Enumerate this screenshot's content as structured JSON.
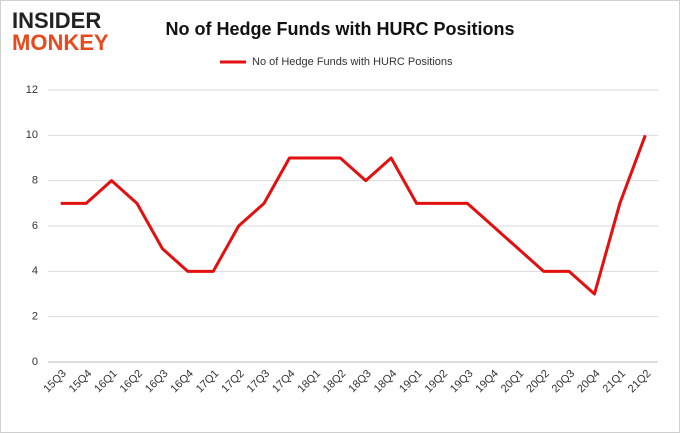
{
  "brand": {
    "line1": "INSIDER",
    "line2": "MONKEY"
  },
  "chart_data": {
    "type": "line",
    "title": "No of Hedge Funds with HURC Positions",
    "categories": [
      "15Q3",
      "15Q4",
      "16Q1",
      "16Q2",
      "16Q3",
      "16Q4",
      "17Q1",
      "17Q2",
      "17Q3",
      "17Q4",
      "18Q1",
      "18Q2",
      "18Q3",
      "18Q4",
      "19Q1",
      "19Q2",
      "19Q3",
      "19Q4",
      "20Q1",
      "20Q2",
      "20Q3",
      "20Q4",
      "21Q1",
      "21Q2"
    ],
    "series": [
      {
        "name": "No of Hedge Funds with HURC Positions",
        "color": "#e3100f",
        "values": [
          7,
          7,
          8,
          7,
          5,
          4,
          4,
          6,
          7,
          9,
          9,
          9,
          8,
          9,
          7,
          7,
          7,
          6,
          5,
          4,
          4,
          3,
          7,
          10
        ]
      }
    ],
    "ylim": [
      0,
      12
    ],
    "yticks": [
      0,
      2,
      4,
      6,
      8,
      10,
      12
    ],
    "grid": true,
    "legend": "top"
  }
}
